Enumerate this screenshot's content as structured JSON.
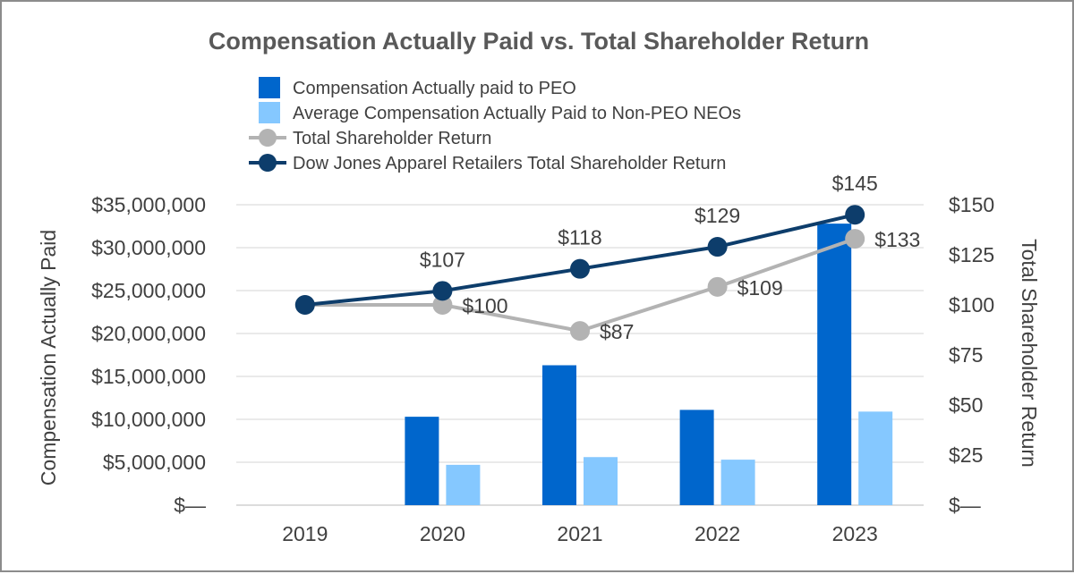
{
  "chart_data": {
    "type": "bar+line",
    "title": "Compensation Actually Paid vs. Total Shareholder Return",
    "categories": [
      "2019",
      "2020",
      "2021",
      "2022",
      "2023"
    ],
    "bar_series": [
      {
        "name": "Compensation Actually paid to PEO",
        "color": "#0066cc",
        "values": [
          null,
          10300000,
          16300000,
          11100000,
          32800000
        ]
      },
      {
        "name": "Average Compensation Actually Paid to Non-PEO NEOs",
        "color": "#85c8ff",
        "values": [
          null,
          4700000,
          5600000,
          5300000,
          10900000
        ]
      }
    ],
    "line_series": [
      {
        "name": "Total Shareholder Return",
        "color": "#b3b3b3",
        "values": [
          100,
          100,
          87,
          109,
          133
        ],
        "labels": [
          "",
          "$100",
          "$87",
          "$109",
          "$133"
        ]
      },
      {
        "name": "Dow Jones Apparel Retailers Total Shareholder Return",
        "color": "#0d3d6b",
        "values": [
          100,
          107,
          118,
          129,
          145
        ],
        "labels": [
          "",
          "$107",
          "$118",
          "$129",
          "$145"
        ]
      }
    ],
    "ylabel": "Compensation Actually Paid",
    "y2label": "Total Shareholder Return",
    "ylim": [
      0,
      35000000
    ],
    "y2lim": [
      0,
      150
    ],
    "yticks": [
      "$—",
      "$5,000,000",
      "$10,000,000",
      "$15,000,000",
      "$20,000,000",
      "$25,000,000",
      "$30,000,000",
      "$35,000,000"
    ],
    "y2ticks": [
      "$—",
      "$25",
      "$50",
      "$75",
      "$100",
      "$125",
      "$150"
    ],
    "grid": true,
    "legend_position": "top-center"
  }
}
